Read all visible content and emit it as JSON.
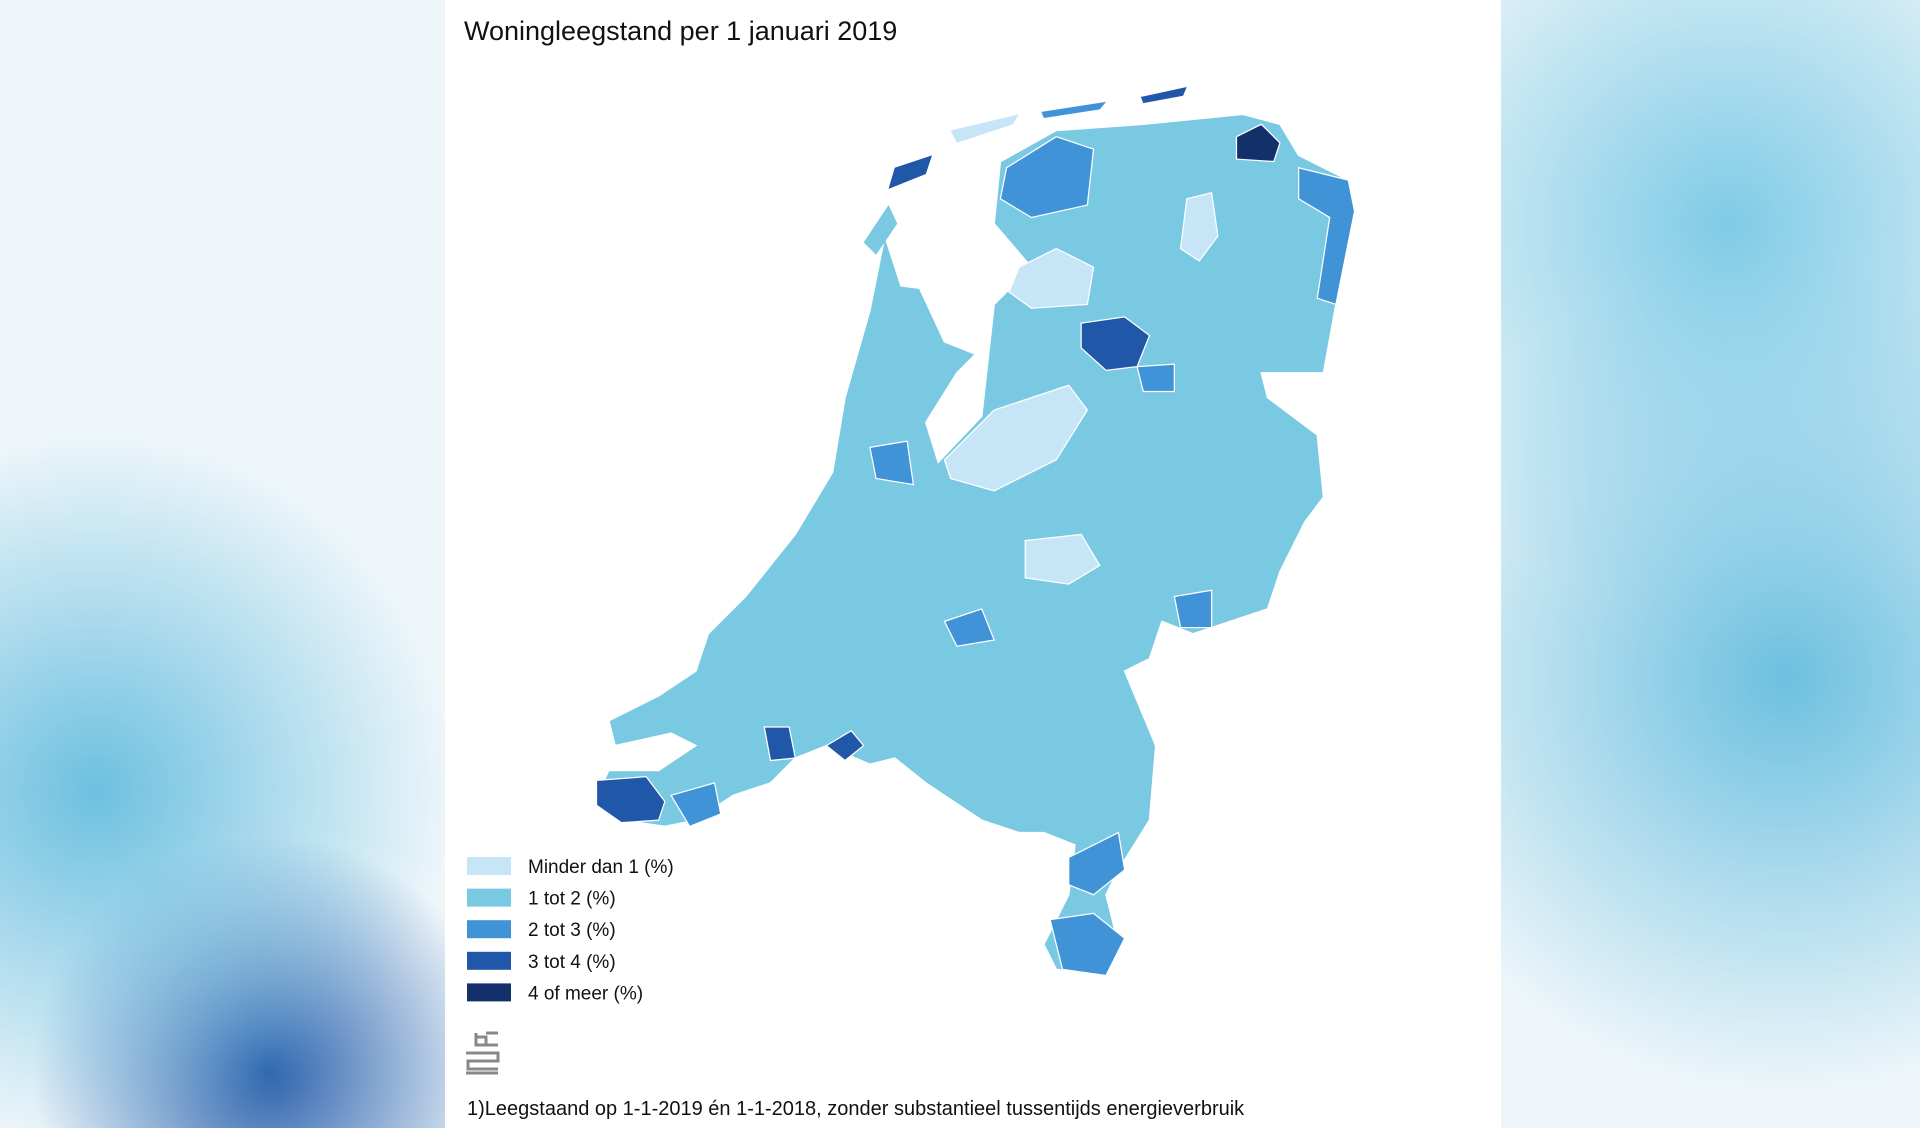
{
  "title": "Woningleegstand per 1 januari 2019",
  "legend": [
    {
      "label": "Minder dan 1 (%)",
      "color": "#c6e6f8"
    },
    {
      "label": "1 tot 2 (%)",
      "color": "#79c9e3"
    },
    {
      "label": "2 tot 3 (%)",
      "color": "#3f93d6"
    },
    {
      "label": "3 tot 4 (%)",
      "color": "#2157a8"
    },
    {
      "label": "4 of meer (%)",
      "color": "#13306b"
    }
  ],
  "footnote": "1)Leegstaand op 1-1-2019 én 1-1-2018, zonder substantieel tussentijds energieverbruik"
}
